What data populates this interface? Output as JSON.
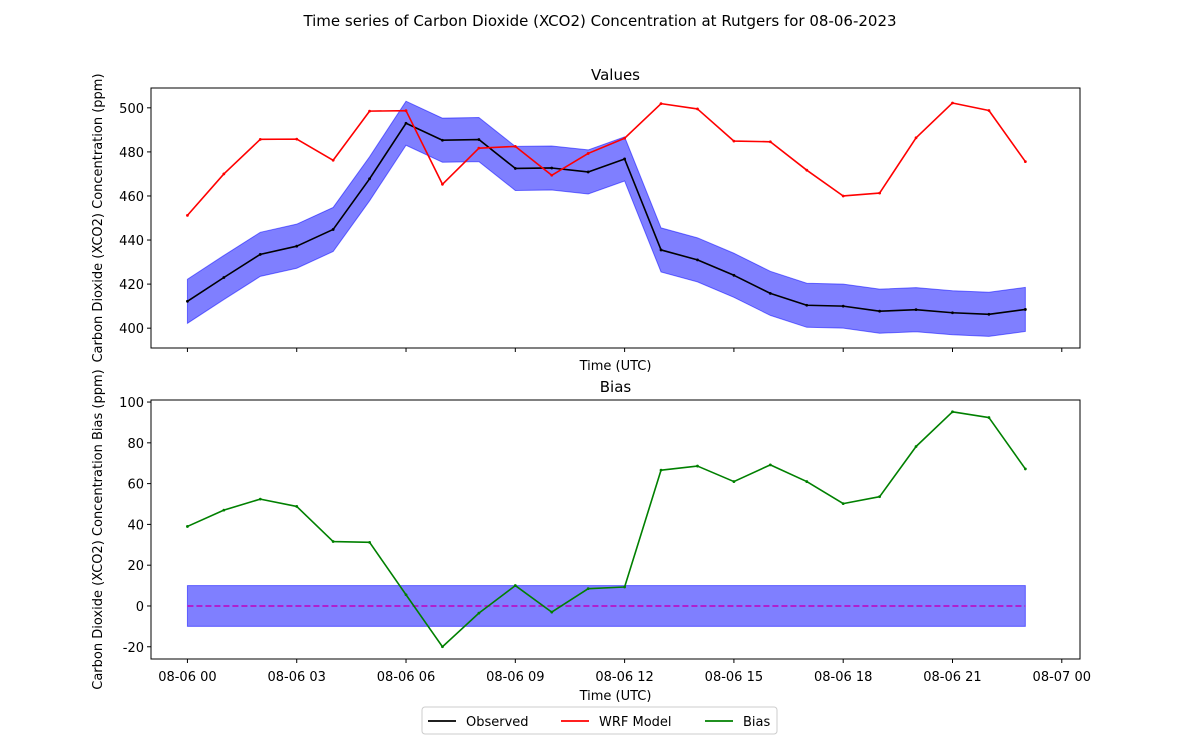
{
  "figure": {
    "title": "Time series of Carbon Dioxide (XCO2) Concentration at Rutgers for 08-06-2023"
  },
  "legend": {
    "placement": "bottom-center",
    "entries": [
      {
        "label": "Observed",
        "color": "#000000"
      },
      {
        "label": "WRF Model",
        "color": "#ff0000"
      },
      {
        "label": "Bias",
        "color": "#008000"
      }
    ]
  },
  "colors": {
    "observed": "#000000",
    "model": "#ff0000",
    "bias": "#008000",
    "band": "#0000ff",
    "zero_line": "#bf00bf"
  },
  "chart_data": [
    {
      "type": "line",
      "title": "Values",
      "xlabel": "Time (UTC)",
      "ylabel": "Carbon Dioxide (XCO2) Concentration (ppm)",
      "x": [
        "08-06 00:00",
        "08-06 01:00",
        "08-06 02:00",
        "08-06 03:00",
        "08-06 04:00",
        "08-06 05:00",
        "08-06 06:00",
        "08-06 07:00",
        "08-06 08:00",
        "08-06 09:00",
        "08-06 10:00",
        "08-06 11:00",
        "08-06 12:00",
        "08-06 13:00",
        "08-06 14:00",
        "08-06 15:00",
        "08-06 16:00",
        "08-06 17:00",
        "08-06 18:00",
        "08-06 19:00",
        "08-06 20:00",
        "08-06 21:00",
        "08-06 22:00",
        "08-06 23:00"
      ],
      "xlim": [
        "08-05 23:00",
        "08-07 00:30"
      ],
      "xticks": [
        "08-06 00",
        "08-06 03",
        "08-06 06",
        "08-06 09",
        "08-06 12",
        "08-06 15",
        "08-06 18",
        "08-06 21",
        "08-07 00"
      ],
      "show_xtick_labels": false,
      "ylim": [
        391,
        509
      ],
      "yticks": [
        400,
        420,
        440,
        460,
        480,
        500
      ],
      "grid": false,
      "series": [
        {
          "name": "Observed",
          "color": "#000000",
          "values": [
            412.2,
            423.0,
            433.5,
            437.2,
            444.8,
            467.8,
            493.0,
            485.3,
            485.6,
            472.5,
            472.7,
            470.9,
            476.8,
            435.5,
            431.0,
            424.0,
            415.8,
            410.4,
            410.0,
            407.7,
            408.4,
            407.0,
            406.3,
            408.5
          ],
          "band": {
            "lower_offset": -10,
            "upper_offset": 10,
            "color": "#0000ff",
            "alpha": 0.5
          }
        },
        {
          "name": "WRF Model",
          "color": "#ff0000",
          "values": [
            451.2,
            470.0,
            485.7,
            485.8,
            476.2,
            498.5,
            498.7,
            465.3,
            481.7,
            482.5,
            469.4,
            479.3,
            486.2,
            501.9,
            499.5,
            484.9,
            484.6,
            471.7,
            460.0,
            461.3,
            486.4,
            502.2,
            498.8,
            475.6
          ]
        }
      ]
    },
    {
      "type": "line",
      "title": "Bias",
      "xlabel": "Time (UTC)",
      "ylabel": "Carbon Dioxide (XCO2) Concentration Bias (ppm)",
      "x": [
        "08-06 00:00",
        "08-06 01:00",
        "08-06 02:00",
        "08-06 03:00",
        "08-06 04:00",
        "08-06 05:00",
        "08-06 06:00",
        "08-06 07:00",
        "08-06 08:00",
        "08-06 09:00",
        "08-06 10:00",
        "08-06 11:00",
        "08-06 12:00",
        "08-06 13:00",
        "08-06 14:00",
        "08-06 15:00",
        "08-06 16:00",
        "08-06 17:00",
        "08-06 18:00",
        "08-06 19:00",
        "08-06 20:00",
        "08-06 21:00",
        "08-06 22:00",
        "08-06 23:00"
      ],
      "xlim": [
        "08-05 23:00",
        "08-07 00:30"
      ],
      "xticks": [
        "08-06 00",
        "08-06 03",
        "08-06 06",
        "08-06 09",
        "08-06 12",
        "08-06 15",
        "08-06 18",
        "08-06 21",
        "08-07 00"
      ],
      "show_xtick_labels": true,
      "ylim": [
        -26,
        101
      ],
      "yticks": [
        -20,
        0,
        20,
        40,
        60,
        80,
        100
      ],
      "grid": false,
      "reference_line": {
        "y": 0,
        "style": "dashed",
        "color": "#bf00bf"
      },
      "band": {
        "lower": -10,
        "upper": 10,
        "color": "#0000ff",
        "alpha": 0.5
      },
      "series": [
        {
          "name": "Bias",
          "color": "#008000",
          "values": [
            39.0,
            47.0,
            52.4,
            48.8,
            31.6,
            31.2,
            5.5,
            -20.0,
            -3.5,
            10.0,
            -3.0,
            8.5,
            9.3,
            66.6,
            68.6,
            61.0,
            69.2,
            61.0,
            50.2,
            53.6,
            78.2,
            95.2,
            92.4,
            67.2
          ]
        }
      ]
    }
  ]
}
